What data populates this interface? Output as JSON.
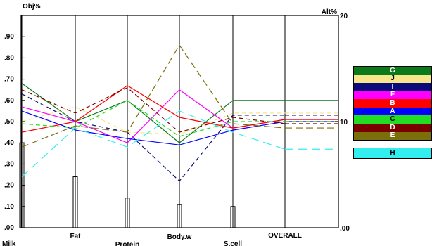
{
  "chart_data": {
    "type": "line",
    "style": "parallel-coordinates",
    "left_axis": {
      "title": "Obj%",
      "ticks": [
        ".00",
        ".10",
        ".20",
        ".30",
        ".40",
        ".50",
        ".60",
        ".70",
        ".80",
        ".90"
      ],
      "ylim": [
        0,
        1
      ]
    },
    "right_axis": {
      "title": "Alt%",
      "ticks": [
        ".00",
        "10",
        "20"
      ],
      "ylim": [
        0,
        20
      ]
    },
    "axes": [
      "Milk",
      "Fat",
      "Protein",
      "Body.w",
      "S.cell",
      "OVERALL"
    ],
    "weights": [
      0.4,
      0.24,
      0.14,
      0.11,
      0.1,
      null
    ],
    "series": [
      {
        "name": "G",
        "color": "#0b7a18",
        "dash": "",
        "values": [
          0.68,
          0.5,
          0.6,
          0.4,
          0.6,
          0.6
        ]
      },
      {
        "name": "J",
        "color": "#f7e68c",
        "dash": "6,4",
        "values": [
          0.5,
          0.57,
          0.45,
          0.44,
          0.54,
          0.54
        ]
      },
      {
        "name": "I",
        "color": "#0a0a7a",
        "dash": "6,4",
        "values": [
          0.63,
          0.5,
          0.45,
          0.22,
          0.53,
          0.53
        ]
      },
      {
        "name": "F",
        "color": "#ff00ff",
        "dash": "",
        "values": [
          0.57,
          0.5,
          0.4,
          0.65,
          0.47,
          0.51
        ]
      },
      {
        "name": "B",
        "color": "#ff0000",
        "dash": "",
        "values": [
          0.45,
          0.5,
          0.67,
          0.52,
          0.47,
          0.51
        ]
      },
      {
        "name": "A",
        "color": "#0000ff",
        "dash": "",
        "values": [
          0.55,
          0.46,
          0.42,
          0.39,
          0.46,
          0.5
        ]
      },
      {
        "name": "C",
        "color": "#22dd22",
        "dash": "6,4",
        "values": [
          0.49,
          0.47,
          0.6,
          0.43,
          0.5,
          0.5
        ]
      },
      {
        "name": "D",
        "color": "#7a0000",
        "dash": "6,4",
        "values": [
          0.65,
          0.54,
          0.66,
          0.45,
          0.52,
          0.49
        ]
      },
      {
        "name": "E",
        "color": "#7a6f0b",
        "dash": "10,5",
        "values": [
          0.38,
          0.48,
          0.45,
          0.86,
          0.49,
          0.47
        ]
      },
      {
        "name": "H",
        "color": "#33eeee",
        "dash": "12,7",
        "values": [
          0.24,
          0.47,
          0.38,
          0.55,
          0.45,
          0.37
        ]
      }
    ],
    "legend": [
      {
        "name": "G",
        "color": "#0b7a18"
      },
      {
        "name": "J",
        "color": "#f7e68c"
      },
      {
        "name": "I",
        "color": "#0a0a7a"
      },
      {
        "name": "F",
        "color": "#ff00ff"
      },
      {
        "name": "B",
        "color": "#ff0000"
      },
      {
        "name": "A",
        "color": "#0000ff"
      },
      {
        "name": "C",
        "color": "#22dd22"
      },
      {
        "name": "D",
        "color": "#7a0000"
      },
      {
        "name": "E",
        "color": "#7a6f0b"
      }
    ],
    "legend_extra": {
      "name": "H",
      "color": "#33eeee"
    },
    "legend_placement": "right",
    "grid": false
  }
}
